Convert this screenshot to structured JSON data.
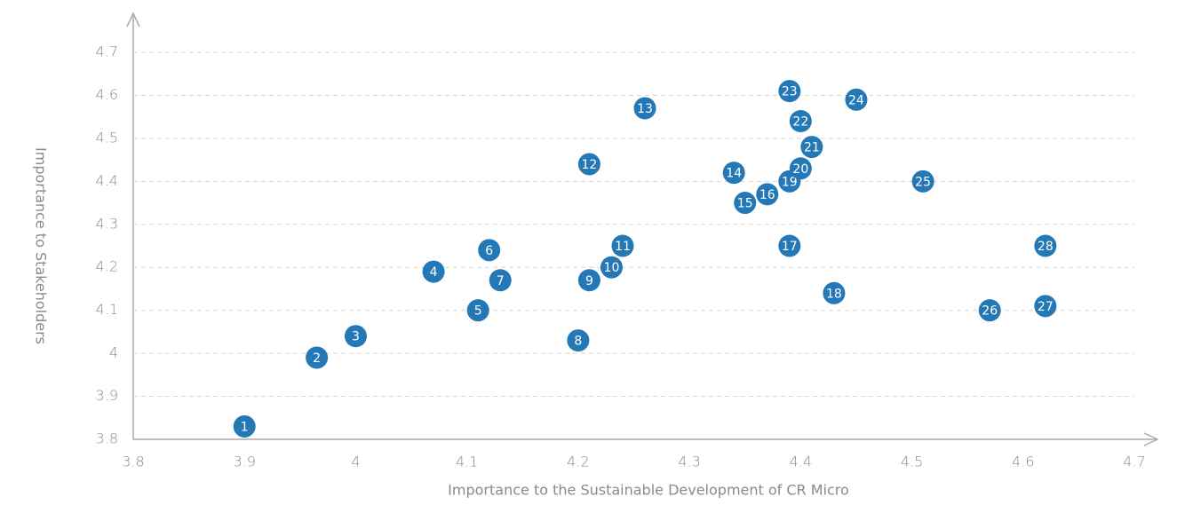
{
  "chart_data": {
    "type": "scatter",
    "x_label": "Importance to the Sustainable Development of CR Micro",
    "y_label": "Importance to Stakeholders",
    "labels": [
      "1",
      "2",
      "3",
      "4",
      "5",
      "6",
      "7",
      "8",
      "9",
      "10",
      "11",
      "12",
      "13",
      "14",
      "15",
      "16",
      "17",
      "18",
      "19",
      "20",
      "21",
      "22",
      "23",
      "24",
      "25",
      "26",
      "27",
      "28"
    ],
    "x": [
      3.9,
      3.965,
      4.0,
      4.07,
      4.11,
      4.12,
      4.13,
      4.2,
      4.21,
      4.23,
      4.24,
      4.21,
      4.26,
      4.34,
      4.35,
      4.37,
      4.39,
      4.43,
      4.39,
      4.4,
      4.41,
      4.4,
      4.39,
      4.45,
      4.51,
      4.57,
      4.62,
      4.62
    ],
    "y": [
      3.83,
      3.99,
      4.04,
      4.19,
      4.1,
      4.24,
      4.17,
      4.03,
      4.17,
      4.2,
      4.25,
      4.44,
      4.57,
      4.42,
      4.35,
      4.37,
      4.25,
      4.14,
      4.4,
      4.43,
      4.48,
      4.54,
      4.61,
      4.59,
      4.4,
      4.1,
      4.11,
      4.25
    ],
    "color": "#2378b5",
    "xlim": [
      3.8,
      4.7
    ],
    "xticks": [
      3.8,
      3.9,
      4,
      4.1,
      4.2,
      4.3,
      4.4,
      4.5,
      4.6,
      4.7
    ],
    "ylim": [
      3.8,
      4.7
    ],
    "yticks": [
      3.8,
      3.9,
      4,
      4.1,
      4.2,
      4.3,
      4.4,
      4.5,
      4.6,
      4.7
    ],
    "grid": true
  }
}
